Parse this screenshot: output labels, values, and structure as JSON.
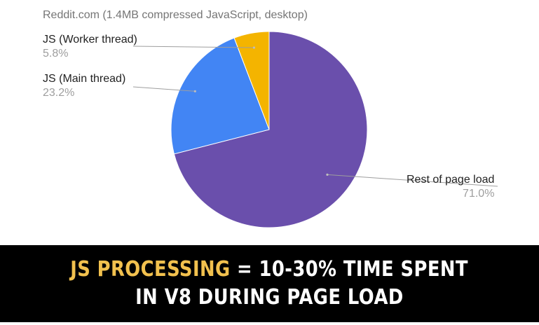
{
  "chart_data": {
    "type": "pie",
    "title": "Reddit.com (1.4MB compressed JavaScript, desktop)",
    "slices": [
      {
        "label": "Rest of page load",
        "value": 71.0,
        "display": "71.0%",
        "color": "#6a4fac"
      },
      {
        "label": "JS (Main thread)",
        "value": 23.2,
        "display": "23.2%",
        "color": "#4285f4"
      },
      {
        "label": "JS (Worker thread)",
        "value": 5.8,
        "display": "5.8%",
        "color": "#f4b400"
      }
    ],
    "legend": "none"
  },
  "banner": {
    "highlight": "JS PROCESSING",
    "line1_rest": " = 10-30% TIME SPENT",
    "line2": "IN V8 DURING PAGE LOAD",
    "highlight_color": "#f2c14e",
    "text_color": "#ffffff",
    "background": "#000000"
  }
}
